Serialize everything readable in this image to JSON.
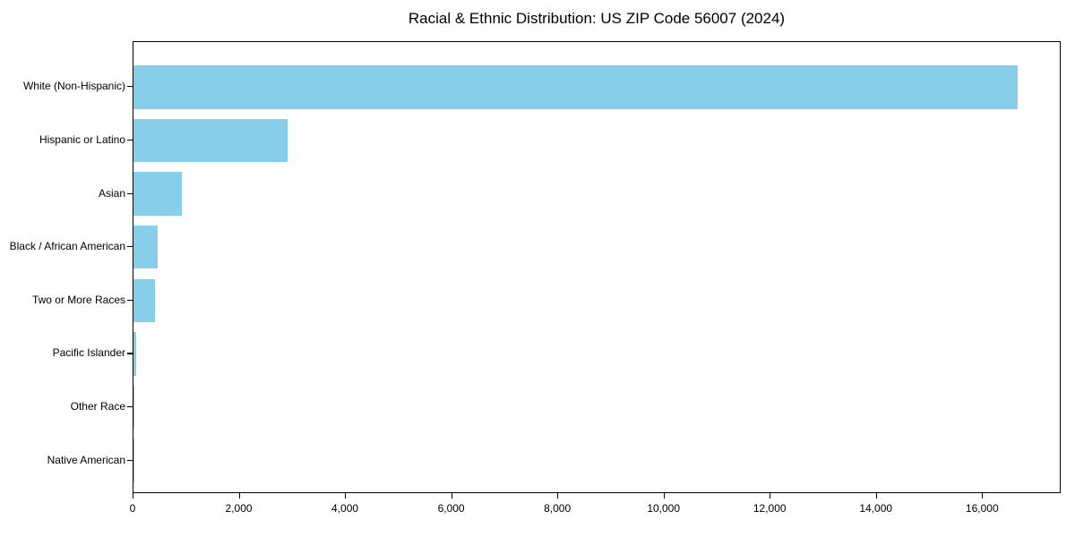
{
  "chart_data": {
    "type": "bar",
    "orientation": "horizontal",
    "title": "Racial & Ethnic Distribution: US ZIP Code 56007 (2024)",
    "categories": [
      "White (Non-Hispanic)",
      "Hispanic or Latino",
      "Asian",
      "Black / African American",
      "Two or More Races",
      "Pacific Islander",
      "Other Race",
      "Native American"
    ],
    "values": [
      16650,
      2900,
      910,
      460,
      410,
      55,
      20,
      8
    ],
    "xlabel": "",
    "ylabel": "",
    "xlim": [
      0,
      17480
    ],
    "tick_values": [
      0,
      2000,
      4000,
      6000,
      8000,
      10000,
      12000,
      14000,
      16000
    ],
    "tick_labels": [
      "0",
      "2,000",
      "4,000",
      "6,000",
      "8,000",
      "10,000",
      "12,000",
      "14,000",
      "16,000"
    ],
    "grid": false,
    "legend": false,
    "colors": {
      "bar": "#87ceeb",
      "axis": "#000000",
      "text": "#000000",
      "background": "#ffffff"
    }
  }
}
